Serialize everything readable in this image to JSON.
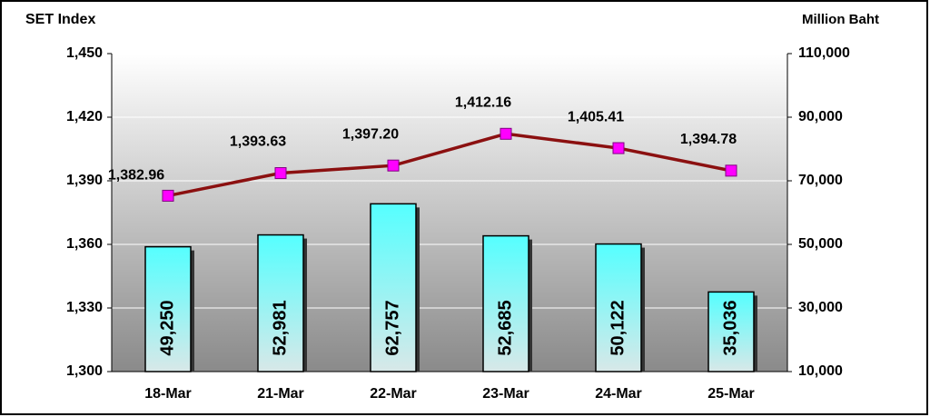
{
  "chart_data": {
    "type": "combo",
    "y_label": "SET Index",
    "y2_label": "Million Baht",
    "categories": [
      "18-Mar",
      "21-Mar",
      "22-Mar",
      "23-Mar",
      "24-Mar",
      "25-Mar"
    ],
    "series": [
      {
        "type": "bar",
        "axis": "y2",
        "color": "#66ffff",
        "values": [
          49250,
          52981,
          62757,
          52685,
          50122,
          35036
        ],
        "value_labels": [
          "49,250",
          "52,981",
          "62,757",
          "52,685",
          "50,122",
          "35,036"
        ]
      },
      {
        "type": "line",
        "axis": "y",
        "color": "#8b1010",
        "marker_color": "#ff00ff",
        "values": [
          1382.96,
          1393.63,
          1397.2,
          1412.16,
          1405.41,
          1394.78
        ],
        "value_labels": [
          "1,382.96",
          "1,393.63",
          "1,397.20",
          "1,412.16",
          "1,405.41",
          "1,394.78"
        ]
      }
    ],
    "ylim": [
      1300,
      1450
    ],
    "yticks": [
      {
        "value": 1300,
        "label": "1,300"
      },
      {
        "value": 1330,
        "label": "1,330"
      },
      {
        "value": 1360,
        "label": "1,360"
      },
      {
        "value": 1390,
        "label": "1,390"
      },
      {
        "value": 1420,
        "label": "1,420"
      },
      {
        "value": 1450,
        "label": "1,450"
      }
    ],
    "y2lim": [
      10000,
      110000
    ],
    "y2ticks": [
      {
        "value": 10000,
        "label": "10,000"
      },
      {
        "value": 30000,
        "label": "30,000"
      },
      {
        "value": 50000,
        "label": "50,000"
      },
      {
        "value": 70000,
        "label": "70,000"
      },
      {
        "value": 90000,
        "label": "90,000"
      },
      {
        "value": 110000,
        "label": "110,000"
      }
    ],
    "grid": true
  }
}
